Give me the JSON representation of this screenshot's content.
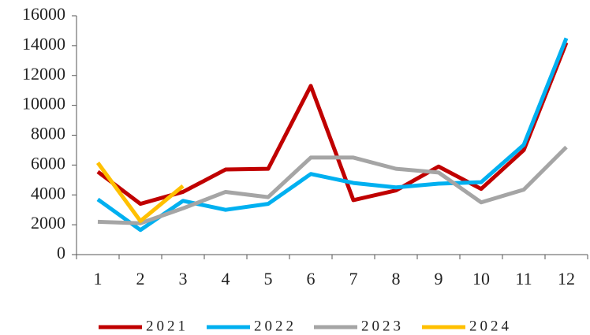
{
  "chart_data": {
    "type": "line",
    "categories": [
      "1",
      "2",
      "3",
      "4",
      "5",
      "6",
      "7",
      "8",
      "9",
      "10",
      "11",
      "12"
    ],
    "series": [
      {
        "name": "2021",
        "color": "#c00000",
        "values": [
          5550,
          3400,
          4200,
          5700,
          5750,
          11300,
          3650,
          4300,
          5900,
          4400,
          7000,
          14200
        ]
      },
      {
        "name": "2022",
        "color": "#00b0f0",
        "values": [
          3700,
          1650,
          3600,
          3000,
          3400,
          5400,
          4800,
          4500,
          4750,
          4850,
          7350,
          14500
        ]
      },
      {
        "name": "2023",
        "color": "#a5a5a5",
        "values": [
          2200,
          2100,
          3100,
          4200,
          3850,
          6500,
          6500,
          5750,
          5500,
          3500,
          4350,
          7200
        ]
      },
      {
        "name": "2024",
        "color": "#ffc000",
        "values": [
          6150,
          2250,
          4600,
          null,
          null,
          null,
          null,
          null,
          null,
          null,
          null,
          null
        ]
      }
    ],
    "ylim": [
      0,
      16000
    ],
    "yticks": [
      0,
      2000,
      4000,
      6000,
      8000,
      10000,
      12000,
      14000,
      16000
    ]
  }
}
